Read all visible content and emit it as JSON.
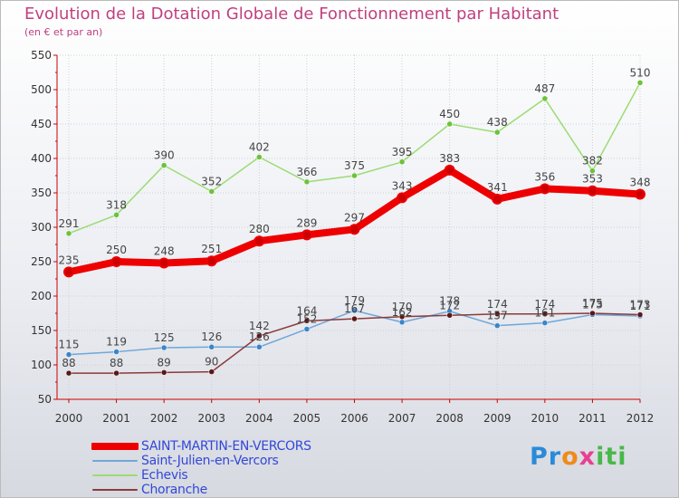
{
  "title": "Evolution de la Dotation Globale de Fonctionnement par Habitant",
  "subtitle": "(en € et par an)",
  "logo": {
    "text": "Proxiti",
    "parts": [
      "Pr",
      "o",
      "x",
      "iti"
    ]
  },
  "colors": {
    "title": "#c0407f",
    "legend_text": "#3347d8",
    "axis": "#cc0000",
    "tick_text": "#333333"
  },
  "chart_data": {
    "type": "line",
    "x": [
      2000,
      2001,
      2002,
      2003,
      2004,
      2005,
      2006,
      2007,
      2008,
      2009,
      2010,
      2011,
      2012
    ],
    "ylim": [
      50,
      550
    ],
    "yticks": [
      50,
      100,
      150,
      200,
      250,
      300,
      350,
      400,
      450,
      500,
      550
    ],
    "grid": true,
    "legend_position": "bottom-left",
    "series": [
      {
        "name": "SAINT-MARTIN-EN-VERCORS",
        "color": "#ee0000",
        "marker": "#cc0000",
        "emphasis": true,
        "values": [
          235,
          250,
          248,
          251,
          280,
          289,
          297,
          343,
          383,
          341,
          356,
          353,
          348
        ]
      },
      {
        "name": "Saint-Julien-en-Vercors",
        "color": "#6fa7d8",
        "marker": "#3a85c8",
        "emphasis": false,
        "values": [
          115,
          119,
          125,
          126,
          126,
          152,
          179,
          162,
          178,
          157,
          161,
          173,
          171
        ]
      },
      {
        "name": "Echevis",
        "color": "#9bdc72",
        "marker": "#6cc23a",
        "emphasis": false,
        "values": [
          291,
          318,
          390,
          352,
          402,
          366,
          375,
          395,
          450,
          438,
          487,
          382,
          510
        ]
      },
      {
        "name": "Choranche",
        "color": "#8b3a3a",
        "marker": "#5a1818",
        "emphasis": false,
        "values": [
          88,
          88,
          89,
          90,
          142,
          164,
          167,
          170,
          172,
          174,
          174,
          175,
          173
        ]
      }
    ]
  }
}
